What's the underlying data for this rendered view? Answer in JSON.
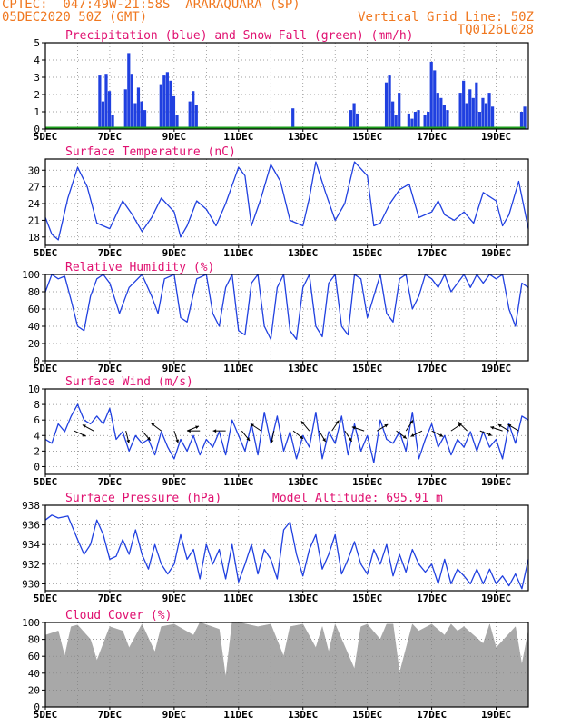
{
  "header": {
    "line1": "CPTEC:  047:49W-21:58S  ARARAQUARA (SP)",
    "line2_left": "05DEC2020 50Z (GMT)",
    "line2_right": "Vertical Grid Line: 50Z",
    "line3_right": "TQ0126L028"
  },
  "colors": {
    "header": "#f07820",
    "title": "#e01070",
    "series": "#2040e0",
    "snow": "#20a020",
    "cloud": "#a8a8a8",
    "grid": "#808080"
  },
  "x_ticks": [
    "5DEC",
    "7DEC",
    "9DEC",
    "11DEC",
    "13DEC",
    "15DEC",
    "17DEC",
    "19DEC"
  ],
  "chart_data": [
    {
      "id": "precip",
      "type": "bar",
      "title": "Precipitation (blue) and Snow Fall (green) (mm/h)",
      "xlabel": "",
      "ylabel": "",
      "ylim": [
        0,
        5
      ],
      "yticks": [
        "0",
        "1",
        "2",
        "3",
        "4",
        "5"
      ],
      "grid": true,
      "series": [
        {
          "color": "series",
          "x": [
            6.7,
            6.8,
            6.9,
            7.0,
            7.1,
            7.5,
            7.6,
            7.7,
            7.8,
            7.9,
            8.0,
            8.1,
            8.6,
            8.7,
            8.8,
            8.9,
            9.0,
            9.1,
            9.5,
            9.6,
            9.7,
            12.7,
            14.5,
            14.6,
            14.7,
            15.6,
            15.7,
            15.8,
            15.9,
            16.0,
            16.3,
            16.4,
            16.5,
            16.6,
            16.8,
            16.9,
            17.0,
            17.1,
            17.2,
            17.3,
            17.4,
            17.5,
            17.9,
            18.0,
            18.1,
            18.2,
            18.3,
            18.4,
            18.5,
            18.6,
            18.7,
            18.8,
            18.9,
            19.8,
            19.9
          ],
          "values": [
            3.1,
            1.6,
            3.2,
            2.2,
            0.8,
            2.3,
            4.4,
            3.2,
            1.5,
            2.4,
            1.6,
            1.1,
            2.6,
            3.1,
            3.3,
            2.8,
            1.9,
            0.8,
            1.6,
            2.2,
            1.4,
            1.2,
            1.1,
            1.5,
            0.9,
            2.7,
            3.1,
            1.6,
            0.8,
            2.1,
            0.9,
            0.6,
            1.0,
            1.1,
            0.8,
            1.0,
            3.9,
            3.4,
            2.1,
            1.8,
            1.4,
            1.1,
            2.1,
            2.8,
            1.5,
            2.3,
            1.8,
            2.7,
            1.0,
            1.8,
            1.5,
            2.1,
            1.3,
            1.0,
            1.3
          ]
        },
        {
          "color": "snow",
          "x": [
            5.0,
            19.9
          ],
          "values": [
            0.1,
            0.1
          ]
        }
      ]
    },
    {
      "id": "temp",
      "type": "line",
      "title": "Surface Temperature (nC)",
      "ylim": [
        16.5,
        32
      ],
      "yticks": [
        "18",
        "21",
        "24",
        "27",
        "30"
      ],
      "grid": true,
      "x": [
        5.0,
        5.2,
        5.4,
        5.7,
        6.0,
        6.3,
        6.6,
        7.0,
        7.2,
        7.4,
        7.7,
        8.0,
        8.3,
        8.6,
        9.0,
        9.2,
        9.4,
        9.7,
        10.0,
        10.3,
        10.6,
        11.0,
        11.2,
        11.4,
        11.7,
        12.0,
        12.3,
        12.6,
        13.0,
        13.2,
        13.4,
        13.7,
        14.0,
        14.3,
        14.6,
        15.0,
        15.2,
        15.4,
        15.7,
        16.0,
        16.3,
        16.6,
        17.0,
        17.2,
        17.4,
        17.7,
        18.0,
        18.3,
        18.6,
        19.0,
        19.2,
        19.4,
        19.7,
        20.0
      ],
      "values": [
        21.5,
        18.5,
        17.5,
        25.0,
        30.5,
        27.0,
        20.5,
        19.5,
        22.0,
        24.5,
        22.0,
        19.0,
        21.5,
        25.0,
        22.5,
        18.0,
        20.0,
        24.5,
        23.0,
        20.0,
        24.0,
        30.5,
        29.0,
        20.0,
        25.0,
        31.0,
        28.0,
        21.0,
        20.0,
        25.0,
        31.5,
        26.0,
        21.0,
        24.0,
        31.5,
        29.0,
        20.0,
        20.5,
        24.0,
        26.5,
        27.5,
        21.5,
        22.5,
        24.5,
        22.0,
        21.0,
        22.5,
        20.5,
        26.0,
        24.5,
        20.0,
        22.0,
        28.0,
        19.5
      ]
    },
    {
      "id": "rh",
      "type": "line",
      "title": "Relative Humidity (%)",
      "ylim": [
        0,
        100
      ],
      "yticks": [
        "0",
        "20",
        "40",
        "60",
        "80",
        "100"
      ],
      "grid": true,
      "x": [
        5.0,
        5.2,
        5.4,
        5.6,
        5.8,
        6.0,
        6.2,
        6.4,
        6.6,
        6.8,
        7.0,
        7.3,
        7.6,
        8.0,
        8.3,
        8.5,
        8.7,
        9.0,
        9.2,
        9.4,
        9.7,
        10.0,
        10.2,
        10.4,
        10.6,
        10.8,
        11.0,
        11.2,
        11.4,
        11.6,
        11.8,
        12.0,
        12.2,
        12.4,
        12.6,
        12.8,
        13.0,
        13.2,
        13.4,
        13.6,
        13.8,
        14.0,
        14.2,
        14.4,
        14.6,
        14.8,
        15.0,
        15.2,
        15.4,
        15.6,
        15.8,
        16.0,
        16.2,
        16.4,
        16.6,
        16.8,
        17.0,
        17.2,
        17.4,
        17.6,
        17.8,
        18.0,
        18.2,
        18.4,
        18.6,
        18.8,
        19.0,
        19.2,
        19.4,
        19.6,
        19.8,
        20.0
      ],
      "values": [
        80,
        100,
        95,
        98,
        70,
        40,
        35,
        75,
        95,
        100,
        90,
        55,
        85,
        100,
        75,
        55,
        95,
        100,
        50,
        45,
        95,
        100,
        55,
        40,
        85,
        100,
        35,
        30,
        90,
        100,
        40,
        25,
        85,
        100,
        35,
        25,
        85,
        100,
        40,
        28,
        90,
        100,
        40,
        30,
        100,
        95,
        50,
        75,
        100,
        55,
        45,
        95,
        100,
        60,
        75,
        100,
        95,
        85,
        100,
        80,
        90,
        100,
        85,
        100,
        90,
        100,
        95,
        100,
        60,
        40,
        90,
        85
      ]
    },
    {
      "id": "wind",
      "type": "line",
      "title": "Surface Wind (m/s)",
      "ylim": [
        -1,
        10
      ],
      "yticks": [
        "0",
        "2",
        "4",
        "6",
        "8",
        "10"
      ],
      "grid": true,
      "x": [
        5.0,
        5.2,
        5.4,
        5.6,
        5.8,
        6.0,
        6.2,
        6.4,
        6.6,
        6.8,
        7.0,
        7.2,
        7.4,
        7.6,
        7.8,
        8.0,
        8.2,
        8.4,
        8.6,
        8.8,
        9.0,
        9.2,
        9.4,
        9.6,
        9.8,
        10.0,
        10.2,
        10.4,
        10.6,
        10.8,
        11.0,
        11.2,
        11.4,
        11.6,
        11.8,
        12.0,
        12.2,
        12.4,
        12.6,
        12.8,
        13.0,
        13.2,
        13.4,
        13.6,
        13.8,
        14.0,
        14.2,
        14.4,
        14.6,
        14.8,
        15.0,
        15.2,
        15.4,
        15.6,
        15.8,
        16.0,
        16.2,
        16.4,
        16.6,
        16.8,
        17.0,
        17.2,
        17.4,
        17.6,
        17.8,
        18.0,
        18.2,
        18.4,
        18.6,
        18.8,
        19.0,
        19.2,
        19.4,
        19.6,
        19.8,
        20.0
      ],
      "values": [
        3.5,
        3.0,
        5.5,
        4.5,
        6.5,
        8.0,
        6.0,
        5.5,
        6.5,
        5.5,
        7.5,
        3.5,
        4.5,
        2.0,
        4.0,
        3.0,
        3.5,
        1.5,
        4.5,
        2.5,
        1.0,
        3.5,
        2.0,
        4.0,
        1.5,
        3.5,
        2.5,
        4.5,
        1.5,
        6.0,
        4.0,
        2.0,
        5.5,
        1.5,
        7.0,
        3.0,
        6.5,
        2.0,
        4.5,
        1.0,
        4.0,
        2.5,
        7.0,
        1.0,
        4.5,
        3.0,
        6.5,
        1.5,
        5.5,
        2.0,
        4.0,
        0.5,
        6.0,
        3.5,
        3.0,
        4.5,
        2.0,
        7.0,
        1.0,
        3.5,
        5.5,
        2.5,
        4.0,
        1.5,
        3.5,
        2.5,
        4.5,
        2.0,
        4.5,
        2.5,
        3.5,
        1.0,
        5.5,
        3.0,
        6.5,
        6.0
      ],
      "barbs": {
        "x": [
          5.9,
          6.5,
          7.5,
          8.0,
          8.6,
          9.0,
          9.4,
          9.8,
          10.6,
          11.1,
          11.7,
          12.1,
          12.7,
          13.2,
          13.5,
          13.9,
          14.3,
          14.9,
          15.3,
          15.9,
          16.2,
          16.7,
          17.0,
          17.6,
          18.1,
          18.5,
          19.2,
          19.4,
          19.7
        ],
        "y": [
          4.6,
          4.6,
          4.6,
          4.6,
          4.6,
          4.6,
          4.6,
          4.6,
          4.6,
          4.6,
          4.6,
          4.6,
          4.6,
          4.6,
          4.6,
          4.6,
          4.6,
          4.6,
          4.6,
          4.6,
          4.6,
          4.6,
          4.6,
          4.6,
          4.6,
          4.6,
          4.6,
          4.6,
          4.6
        ],
        "u": [
          1.5,
          -1.5,
          0.3,
          0.8,
          -0.4,
          0.2,
          0.5,
          -0.2,
          -0.7,
          0.4,
          -0.6,
          -0.2,
          0.5,
          -0.5,
          0.6,
          0.2,
          0.2,
          -0.6,
          0.5,
          0.4,
          0.2,
          -0.4,
          0.6,
          0.3,
          -0.2,
          0.5,
          -0.6,
          -1.0,
          -0.5
        ],
        "v": [
          -0.7,
          0.8,
          -1.2,
          -0.9,
          0.3,
          -0.6,
          0.2,
          0.0,
          0.0,
          -0.5,
          0.4,
          -0.9,
          -0.4,
          0.6,
          -1.0,
          0.3,
          -0.3,
          0.2,
          0.3,
          -0.3,
          0.3,
          -0.2,
          -0.3,
          0.2,
          0.2,
          -0.2,
          0.2,
          0.6,
          0.3
        ]
      }
    },
    {
      "id": "pressure",
      "type": "line",
      "title": "Surface Pressure (hPa)",
      "annotation": "Model Altitude: 695.91 m",
      "ylim": [
        929.3,
        938
      ],
      "yticks": [
        "930",
        "932",
        "934",
        "936",
        "938"
      ],
      "grid": true,
      "x": [
        5.0,
        5.2,
        5.4,
        5.7,
        6.0,
        6.2,
        6.4,
        6.6,
        6.8,
        7.0,
        7.2,
        7.4,
        7.6,
        7.8,
        8.0,
        8.2,
        8.4,
        8.6,
        8.8,
        9.0,
        9.2,
        9.4,
        9.6,
        9.8,
        10.0,
        10.2,
        10.4,
        10.6,
        10.8,
        11.0,
        11.2,
        11.4,
        11.6,
        11.8,
        12.0,
        12.2,
        12.4,
        12.6,
        12.8,
        13.0,
        13.2,
        13.4,
        13.6,
        13.8,
        14.0,
        14.2,
        14.4,
        14.6,
        14.8,
        15.0,
        15.2,
        15.4,
        15.6,
        15.8,
        16.0,
        16.2,
        16.4,
        16.6,
        16.8,
        17.0,
        17.2,
        17.4,
        17.6,
        17.8,
        18.0,
        18.2,
        18.4,
        18.6,
        18.8,
        19.0,
        19.2,
        19.4,
        19.6,
        19.8,
        20.0
      ],
      "values": [
        936.5,
        937.0,
        936.7,
        936.9,
        934.5,
        933.0,
        934.0,
        936.5,
        935.0,
        932.5,
        932.8,
        934.5,
        933.0,
        935.5,
        933.0,
        931.5,
        934.0,
        932.0,
        931.0,
        932.0,
        935.0,
        932.5,
        933.5,
        930.5,
        934.0,
        932.0,
        933.5,
        930.5,
        934.0,
        930.2,
        932.0,
        934.0,
        931.0,
        933.5,
        932.5,
        930.5,
        935.5,
        936.3,
        933.0,
        930.8,
        933.5,
        935.0,
        931.5,
        933.0,
        935.0,
        931.0,
        932.5,
        934.3,
        932.0,
        931.0,
        933.5,
        932.0,
        934.0,
        930.8,
        933.0,
        931.2,
        933.5,
        932.0,
        931.2,
        932.0,
        930.0,
        932.5,
        930.0,
        931.5,
        930.8,
        930.0,
        931.5,
        930.0,
        931.5,
        930.0,
        930.8,
        929.8,
        931.0,
        929.5,
        932.5
      ]
    },
    {
      "id": "cloud",
      "type": "area",
      "title": "Cloud Cover (%)",
      "ylim": [
        0,
        100
      ],
      "yticks": [
        "0",
        "20",
        "40",
        "60",
        "80",
        "100"
      ],
      "grid": true,
      "x": [
        5.0,
        5.4,
        5.6,
        5.8,
        6.0,
        6.4,
        6.6,
        7.0,
        7.4,
        7.6,
        8.0,
        8.4,
        8.6,
        9.0,
        9.6,
        9.8,
        10.4,
        10.6,
        10.8,
        11.0,
        11.6,
        12.0,
        12.4,
        12.6,
        13.0,
        13.4,
        13.6,
        13.8,
        14.0,
        14.6,
        14.8,
        15.0,
        15.4,
        15.6,
        15.8,
        16.0,
        16.4,
        16.6,
        17.0,
        17.4,
        17.6,
        17.8,
        18.0,
        18.6,
        18.8,
        19.0,
        19.6,
        19.8,
        20.0
      ],
      "values": [
        85,
        90,
        60,
        95,
        97,
        80,
        55,
        95,
        90,
        70,
        98,
        65,
        95,
        98,
        85,
        100,
        92,
        35,
        100,
        100,
        95,
        98,
        60,
        95,
        98,
        70,
        95,
        65,
        98,
        45,
        95,
        98,
        80,
        98,
        98,
        40,
        98,
        90,
        98,
        85,
        98,
        90,
        95,
        75,
        98,
        70,
        95,
        50,
        90
      ]
    }
  ]
}
